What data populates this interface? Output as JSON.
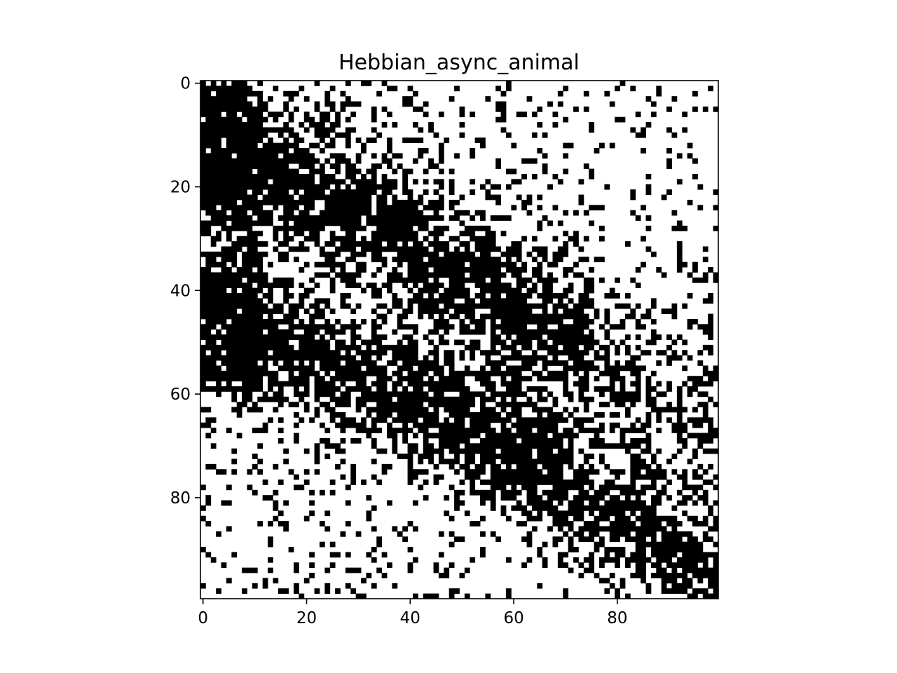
{
  "chart_data": {
    "type": "heatmap",
    "title": "Hebbian_async_animal",
    "xlabel": "",
    "ylabel": "",
    "rows": 100,
    "cols": 100,
    "colormap": {
      "on": "#000000",
      "off": "#ffffff"
    },
    "xticks": [
      0,
      20,
      40,
      60,
      80
    ],
    "yticks": [
      0,
      20,
      40,
      60,
      80
    ],
    "xtick_labels": [
      "0",
      "20",
      "40",
      "60",
      "80"
    ],
    "ytick_labels": [
      "0",
      "20",
      "40",
      "60",
      "80"
    ],
    "xlim": [
      -0.5,
      99.5
    ],
    "ylim": [
      99.5,
      -0.5
    ],
    "grid": false,
    "values_note_free": true,
    "pattern_seed": 7
  }
}
